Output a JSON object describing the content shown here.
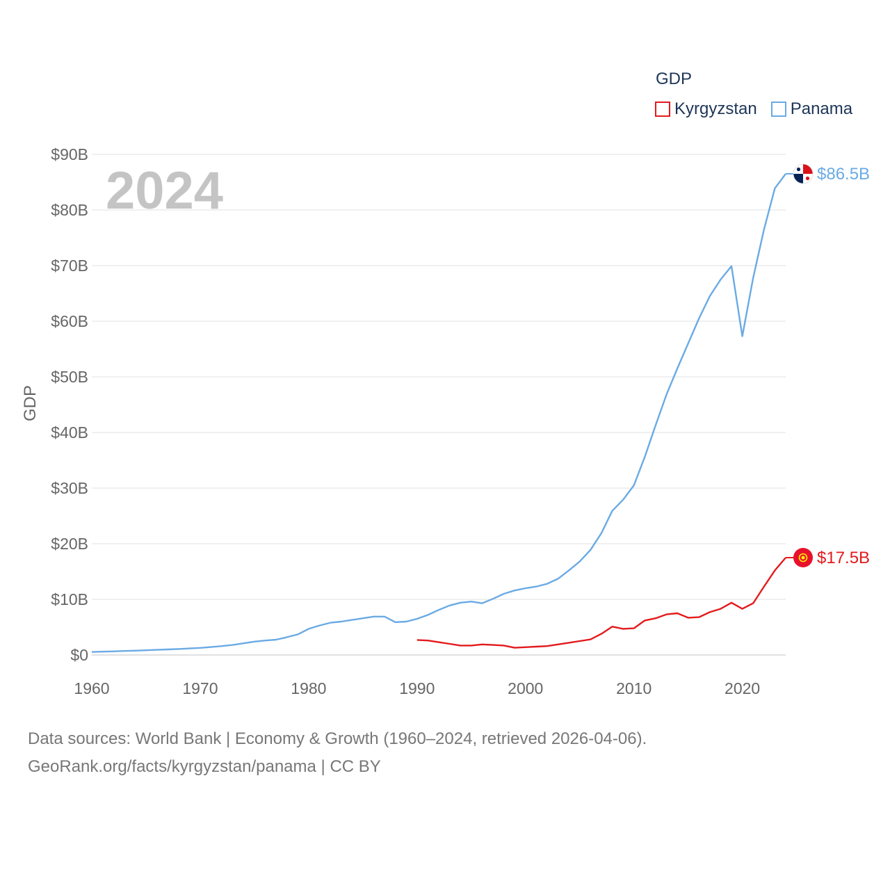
{
  "legend": {
    "title": "GDP",
    "items": [
      {
        "label": "Kyrgyzstan",
        "color": "#e31a1c"
      },
      {
        "label": "Panama",
        "color": "#6aaae4"
      }
    ]
  },
  "source": {
    "line1": "Data sources: World Bank | Economy & Growth (1960–2024, retrieved 2026-04-06).",
    "line2": "GeoRank.org/facts/kyrgyzstan/panama | CC BY"
  },
  "chart_data": {
    "type": "line",
    "title": "",
    "year_label": "2024",
    "xlabel": "",
    "ylabel": "GDP",
    "xlim": [
      1960,
      2024
    ],
    "ylim": [
      0,
      90
    ],
    "x_ticks": [
      1960,
      1970,
      1980,
      1990,
      2000,
      2010,
      2020
    ],
    "y_ticks": [
      0,
      10,
      20,
      30,
      40,
      50,
      60,
      70,
      80,
      90
    ],
    "y_tick_labels": [
      "$0",
      "$10B",
      "$20B",
      "$30B",
      "$40B",
      "$50B",
      "$60B",
      "$70B",
      "$80B",
      "$90B"
    ],
    "grid": true,
    "series": [
      {
        "name": "Panama",
        "color": "#6aaae4",
        "end_label": "$86.5B",
        "x": [
          1960,
          1961,
          1962,
          1963,
          1964,
          1965,
          1966,
          1967,
          1968,
          1969,
          1970,
          1971,
          1972,
          1973,
          1974,
          1975,
          1976,
          1977,
          1978,
          1979,
          1980,
          1981,
          1982,
          1983,
          1984,
          1985,
          1986,
          1987,
          1988,
          1989,
          1990,
          1991,
          1992,
          1993,
          1994,
          1995,
          1996,
          1997,
          1998,
          1999,
          2000,
          2001,
          2002,
          2003,
          2004,
          2005,
          2006,
          2007,
          2008,
          2009,
          2010,
          2011,
          2012,
          2013,
          2014,
          2015,
          2016,
          2017,
          2018,
          2019,
          2020,
          2021,
          2022,
          2023,
          2024
        ],
        "values": [
          0.54,
          0.6,
          0.65,
          0.72,
          0.78,
          0.85,
          0.92,
          1.0,
          1.08,
          1.17,
          1.28,
          1.42,
          1.6,
          1.8,
          2.1,
          2.4,
          2.6,
          2.75,
          3.2,
          3.7,
          4.7,
          5.3,
          5.8,
          6.0,
          6.3,
          6.6,
          6.9,
          6.9,
          5.9,
          6.0,
          6.5,
          7.2,
          8.1,
          8.9,
          9.4,
          9.6,
          9.3,
          10.1,
          11.0,
          11.6,
          12.0,
          12.3,
          12.8,
          13.7,
          15.2,
          16.8,
          18.9,
          21.9,
          25.9,
          27.9,
          30.5,
          35.6,
          41.3,
          46.8,
          51.5,
          56.0,
          60.5,
          64.5,
          67.5,
          69.9,
          57.3,
          67.8,
          76.5,
          83.9,
          86.5
        ]
      },
      {
        "name": "Kyrgyzstan",
        "color": "#e31a1c",
        "end_label": "$17.5B",
        "x": [
          1990,
          1991,
          1992,
          1993,
          1994,
          1995,
          1996,
          1997,
          1998,
          1999,
          2000,
          2001,
          2002,
          2003,
          2004,
          2005,
          2006,
          2007,
          2008,
          2009,
          2010,
          2011,
          2012,
          2013,
          2014,
          2015,
          2016,
          2017,
          2018,
          2019,
          2020,
          2021,
          2022,
          2023,
          2024
        ],
        "values": [
          2.7,
          2.6,
          2.3,
          2.0,
          1.7,
          1.7,
          1.9,
          1.8,
          1.7,
          1.3,
          1.4,
          1.5,
          1.6,
          1.9,
          2.2,
          2.5,
          2.8,
          3.8,
          5.1,
          4.7,
          4.8,
          6.2,
          6.6,
          7.3,
          7.5,
          6.7,
          6.8,
          7.7,
          8.3,
          9.4,
          8.3,
          9.3,
          12.3,
          15.2,
          17.5
        ]
      }
    ]
  }
}
